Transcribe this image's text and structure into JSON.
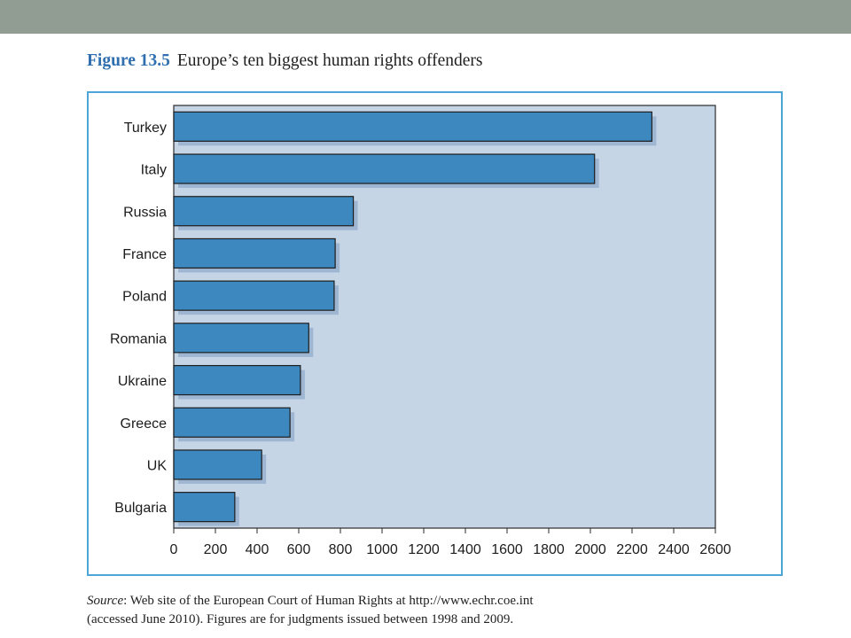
{
  "figure": {
    "number": "Figure 13.5",
    "title": "Europe’s ten biggest human rights offenders"
  },
  "source": {
    "label": "Source",
    "line1": ": Web site of the European Court of Human Rights at http://www.echr.coe.int",
    "line2": "(accessed June 2010). Figures are for judgments issued between 1998 and 2009."
  },
  "colors": {
    "top_band": "#919d92",
    "frame_border": "#4ea6d8",
    "plot_background": "#c5d5e6",
    "bar_fill": "#3e88c0",
    "bar_shadow": "#9fb6d3",
    "title_accent": "#2f6fb0"
  },
  "chart_data": {
    "type": "bar",
    "orientation": "horizontal",
    "categories": [
      "Turkey",
      "Italy",
      "Russia",
      "France",
      "Poland",
      "Romania",
      "Ukraine",
      "Greece",
      "UK",
      "Bulgaria"
    ],
    "values": [
      2295,
      2020,
      862,
      775,
      770,
      648,
      608,
      558,
      422,
      293
    ],
    "xlim": [
      0,
      2600
    ],
    "xticks": [
      0,
      200,
      400,
      600,
      800,
      1000,
      1200,
      1400,
      1600,
      1800,
      2000,
      2200,
      2400,
      2600
    ],
    "grid": false
  }
}
